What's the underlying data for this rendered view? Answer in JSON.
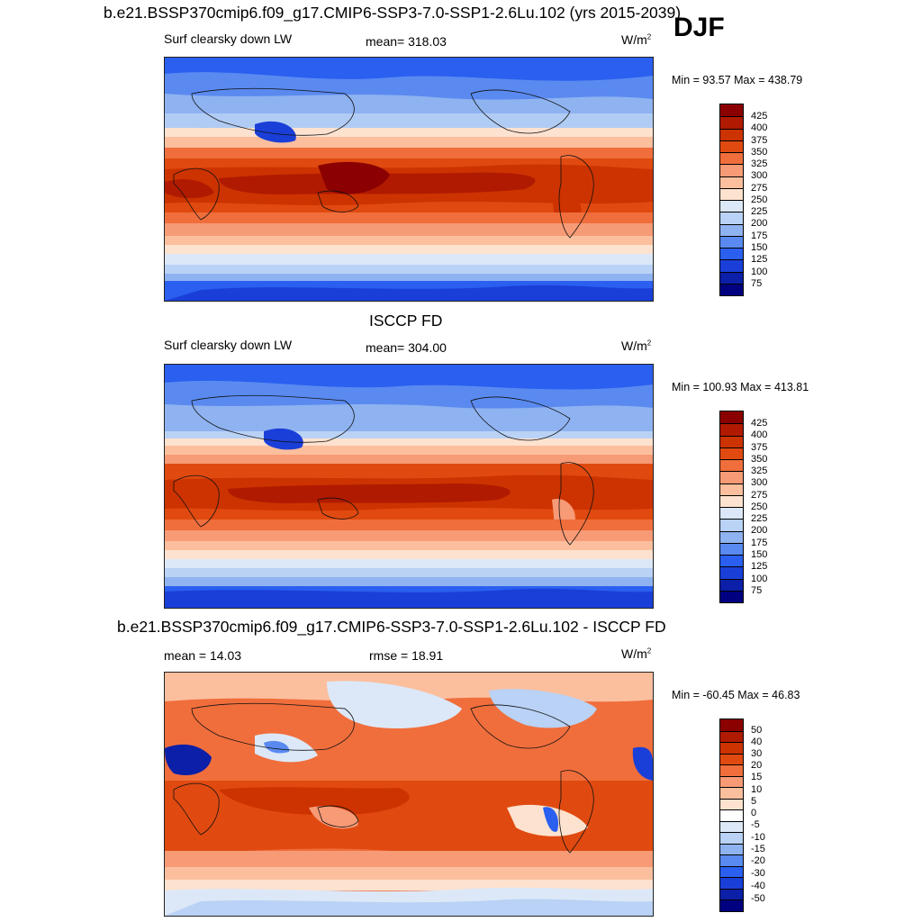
{
  "season": "DJF",
  "panels": [
    {
      "title": "b.e21.BSSP370cmip6.f09_g17.CMIP6-SSP3-7.0-SSP1-2.6Lu.102 (yrs 2015-2039)",
      "left": "Surf clearsky down LW",
      "center": "mean= 318.03",
      "units_base": "W/m",
      "units_exp": "2",
      "minmax": "Min =  93.57 Max = 438.79",
      "levels": [
        "425",
        "400",
        "375",
        "350",
        "325",
        "300",
        "275",
        "250",
        "225",
        "200",
        "175",
        "150",
        "125",
        "100",
        "75"
      ]
    },
    {
      "title": "ISCCP FD",
      "left": "Surf clearsky down LW",
      "center": "mean= 304.00",
      "units_base": "W/m",
      "units_exp": "2",
      "minmax": "Min = 100.93 Max = 413.81",
      "levels": [
        "425",
        "400",
        "375",
        "350",
        "325",
        "300",
        "275",
        "250",
        "225",
        "200",
        "175",
        "150",
        "125",
        "100",
        "75"
      ]
    },
    {
      "title": "b.e21.BSSP370cmip6.f09_g17.CMIP6-SSP3-7.0-SSP1-2.6Lu.102 - ISCCP FD",
      "left": "mean =  14.03",
      "center": "rmse =  18.91",
      "units_base": "W/m",
      "units_exp": "2",
      "minmax": "Min = -60.45 Max =  46.83",
      "levels": [
        "50",
        "40",
        "30",
        "20",
        "15",
        "10",
        "5",
        "0",
        "-5",
        "-10",
        "-15",
        "-20",
        "-30",
        "-40",
        "-50"
      ]
    }
  ],
  "colors": {
    "abs_scale": [
      "#8b0000",
      "#b01a00",
      "#cc3300",
      "#e04a10",
      "#f06e3c",
      "#f79a76",
      "#fbbf9e",
      "#fde2cf",
      "#dce8f8",
      "#b9d2f5",
      "#8fb3f0",
      "#5a8af0",
      "#2a5ff0",
      "#1a3fd8",
      "#0b1fa8",
      "#000080"
    ],
    "diff_scale": [
      "#8b0000",
      "#b01a00",
      "#cc3300",
      "#e04a10",
      "#f06e3c",
      "#f79a76",
      "#fbbf9e",
      "#fde2cf",
      "#ffffff",
      "#dce8f8",
      "#b9d2f5",
      "#8fb3f0",
      "#5a8af0",
      "#2a5ff0",
      "#1a3fd8",
      "#0b1fa8",
      "#000080"
    ]
  }
}
